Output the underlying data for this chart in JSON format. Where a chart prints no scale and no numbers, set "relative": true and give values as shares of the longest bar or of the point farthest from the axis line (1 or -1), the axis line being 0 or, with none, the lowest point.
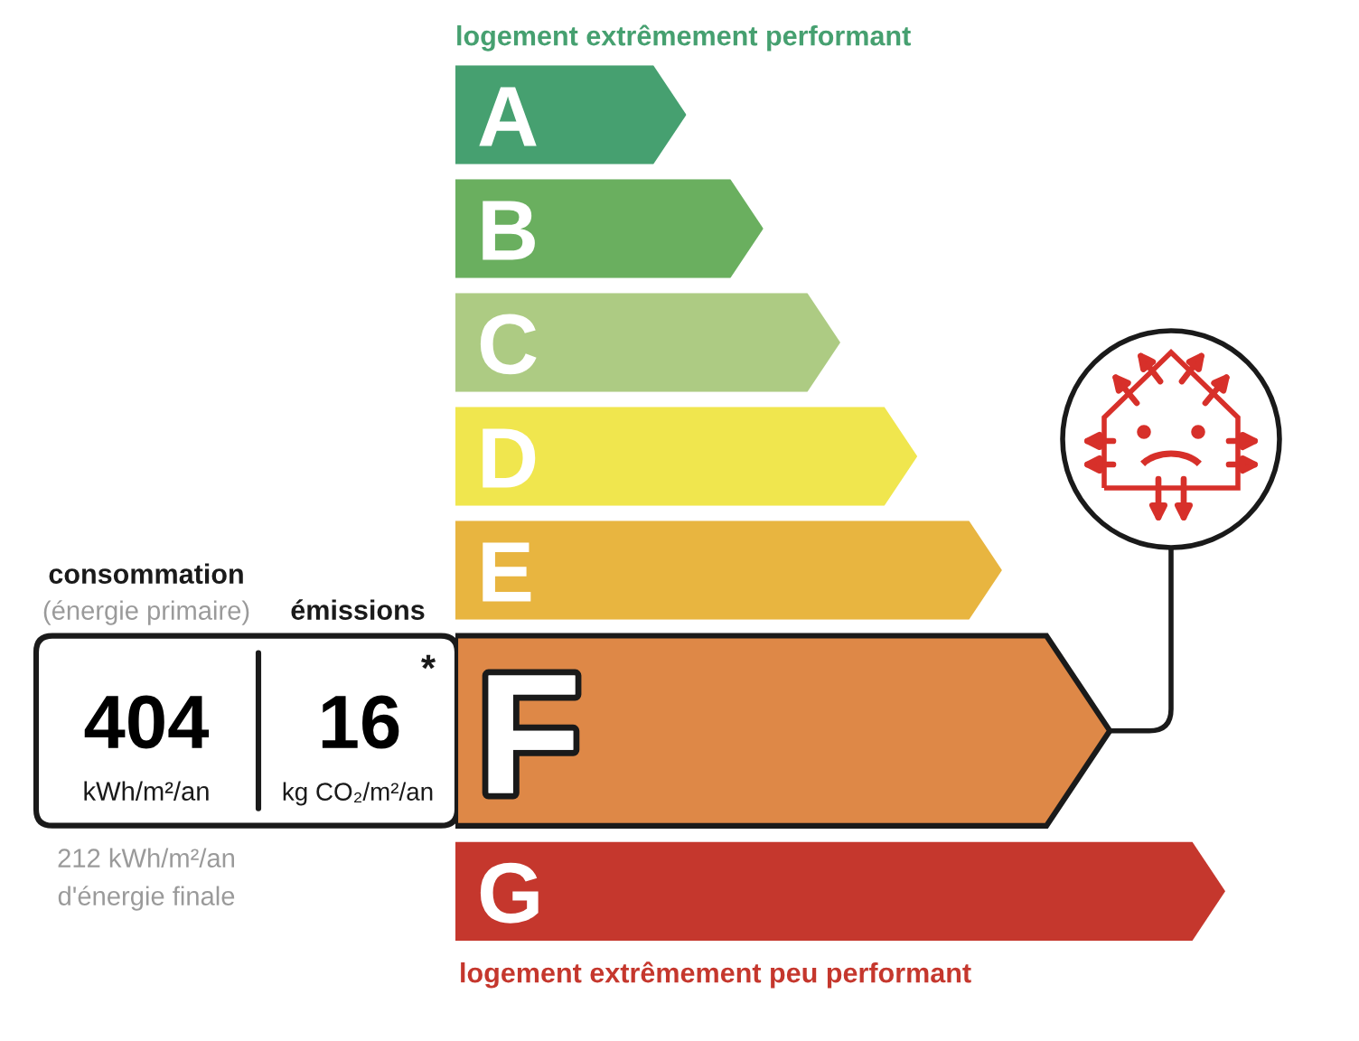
{
  "chart_data": {
    "type": "bar",
    "orientation": "horizontal",
    "relative": true,
    "categories": [
      "A",
      "B",
      "C",
      "D",
      "E",
      "F",
      "G"
    ],
    "values": [
      0.3,
      0.4,
      0.5,
      0.6,
      0.71,
      0.85,
      1
    ],
    "colors": [
      "#46a070",
      "#6aaf5f",
      "#adcb83",
      "#f0e64e",
      "#e8b540",
      "#de8847",
      "#c5372d"
    ],
    "annotations": [
      "logement extrêmement performant",
      "logement extrêmement peu performant",
      "consommation",
      "(énergie primaire)",
      "émissions",
      "404",
      "kWh/m²/an",
      "16",
      "*",
      "kg CO₂/m²/an",
      "212 kWh/m²/an",
      "d'énergie finale"
    ]
  }
}
